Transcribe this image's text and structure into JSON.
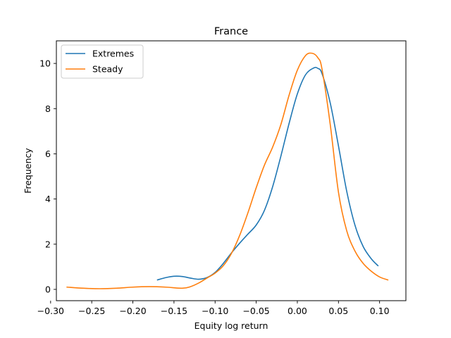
{
  "chart_data": {
    "type": "line",
    "title": "France",
    "xlabel": "Equity log return",
    "ylabel": "Frequency",
    "xlim": [
      -0.293,
      0.132
    ],
    "ylim": [
      -0.5,
      11.0
    ],
    "xticks": [
      -0.3,
      -0.25,
      -0.2,
      -0.15,
      -0.1,
      -0.05,
      0.0,
      0.05,
      0.1
    ],
    "xtick_labels": [
      "−0.30",
      "−0.25",
      "−0.20",
      "−0.15",
      "−0.10",
      "−0.05",
      "0.00",
      "0.05",
      "0.10"
    ],
    "yticks": [
      0,
      2,
      4,
      6,
      8,
      10
    ],
    "ytick_labels": [
      "0",
      "2",
      "4",
      "6",
      "8",
      "10"
    ],
    "grid": false,
    "legend_position": "top-left",
    "series": [
      {
        "name": "Extremes",
        "color": "#1f77b4",
        "x": [
          -0.17,
          -0.16,
          -0.15,
          -0.14,
          -0.13,
          -0.12,
          -0.11,
          -0.1,
          -0.09,
          -0.08,
          -0.07,
          -0.06,
          -0.05,
          -0.04,
          -0.03,
          -0.02,
          -0.01,
          0.0,
          0.01,
          0.02,
          0.025,
          0.03,
          0.04,
          0.05,
          0.06,
          0.07,
          0.08,
          0.09,
          0.098
        ],
        "y": [
          0.42,
          0.52,
          0.58,
          0.57,
          0.5,
          0.45,
          0.52,
          0.75,
          1.15,
          1.62,
          2.05,
          2.45,
          2.85,
          3.5,
          4.55,
          5.9,
          7.35,
          8.65,
          9.5,
          9.8,
          9.78,
          9.55,
          8.25,
          6.35,
          4.35,
          2.85,
          1.9,
          1.35,
          1.05
        ]
      },
      {
        "name": "Steady",
        "color": "#ff7f0e",
        "x": [
          -0.28,
          -0.26,
          -0.24,
          -0.22,
          -0.2,
          -0.18,
          -0.16,
          -0.14,
          -0.13,
          -0.12,
          -0.11,
          -0.1,
          -0.09,
          -0.08,
          -0.07,
          -0.06,
          -0.05,
          -0.04,
          -0.03,
          -0.02,
          -0.01,
          0.0,
          0.01,
          0.018,
          0.025,
          0.03,
          0.04,
          0.05,
          0.06,
          0.07,
          0.08,
          0.09,
          0.1,
          0.11
        ],
        "y": [
          0.1,
          0.05,
          0.03,
          0.05,
          0.1,
          0.12,
          0.1,
          0.05,
          0.12,
          0.28,
          0.5,
          0.72,
          1.05,
          1.6,
          2.4,
          3.4,
          4.5,
          5.5,
          6.3,
          7.3,
          8.6,
          9.7,
          10.35,
          10.45,
          10.25,
          9.75,
          7.3,
          4.3,
          2.6,
          1.7,
          1.15,
          0.8,
          0.55,
          0.42
        ]
      }
    ]
  }
}
